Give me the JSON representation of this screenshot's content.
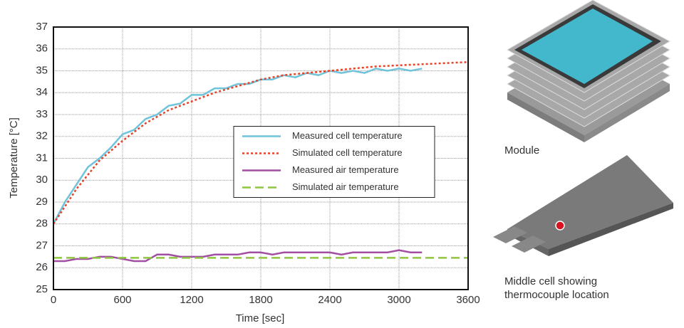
{
  "chart_data": {
    "type": "line",
    "xlabel": "Time [sec]",
    "ylabel": "Temperature [°C]",
    "xlim": [
      0,
      3600
    ],
    "xticks": [
      0,
      600,
      1200,
      1800,
      2400,
      3000,
      3600
    ],
    "ylim": [
      25,
      37
    ],
    "yticks": [
      25,
      26,
      27,
      28,
      29,
      30,
      31,
      32,
      33,
      34,
      35,
      36,
      37
    ],
    "grid": true,
    "legend": "center right",
    "series": [
      {
        "name": "Measured cell temperature",
        "color": "#6fc3da",
        "style": "solid",
        "x": [
          0,
          100,
          200,
          300,
          400,
          500,
          600,
          700,
          800,
          900,
          1000,
          1100,
          1200,
          1300,
          1400,
          1500,
          1600,
          1700,
          1800,
          1900,
          2000,
          2100,
          2200,
          2300,
          2400,
          2500,
          2600,
          2700,
          2800,
          2900,
          3000,
          3100,
          3200
        ],
        "values": [
          28.0,
          29.0,
          29.8,
          30.6,
          31.0,
          31.5,
          32.1,
          32.3,
          32.8,
          33.0,
          33.4,
          33.5,
          33.9,
          33.9,
          34.2,
          34.2,
          34.4,
          34.4,
          34.6,
          34.6,
          34.8,
          34.7,
          34.9,
          34.8,
          35.0,
          34.9,
          35.0,
          34.9,
          35.1,
          35.0,
          35.1,
          35.0,
          35.1
        ]
      },
      {
        "name": "Simulated cell temperature",
        "color": "#e2452c",
        "style": "dotted",
        "x": [
          0,
          200,
          400,
          600,
          800,
          1000,
          1200,
          1400,
          1600,
          1800,
          2000,
          2200,
          2400,
          2600,
          2800,
          3000,
          3200,
          3400,
          3600
        ],
        "values": [
          28.0,
          29.6,
          30.9,
          31.8,
          32.6,
          33.2,
          33.6,
          34.0,
          34.3,
          34.6,
          34.8,
          34.9,
          35.0,
          35.1,
          35.2,
          35.25,
          35.3,
          35.35,
          35.4
        ]
      },
      {
        "name": "Measured air temperature",
        "color": "#a24ea2",
        "style": "solid",
        "x": [
          0,
          100,
          200,
          300,
          400,
          500,
          600,
          700,
          800,
          900,
          1000,
          1100,
          1200,
          1300,
          1400,
          1500,
          1600,
          1700,
          1800,
          1900,
          2000,
          2100,
          2200,
          2300,
          2400,
          2500,
          2600,
          2700,
          2800,
          2900,
          3000,
          3100,
          3200
        ],
        "values": [
          26.3,
          26.3,
          26.4,
          26.4,
          26.5,
          26.5,
          26.4,
          26.3,
          26.3,
          26.6,
          26.6,
          26.5,
          26.5,
          26.5,
          26.6,
          26.6,
          26.6,
          26.7,
          26.7,
          26.6,
          26.7,
          26.7,
          26.7,
          26.7,
          26.7,
          26.6,
          26.7,
          26.7,
          26.7,
          26.7,
          26.8,
          26.7,
          26.7
        ]
      },
      {
        "name": "Simulated air temperature",
        "color": "#8dc63f",
        "style": "dashed",
        "x": [
          0,
          3600
        ],
        "values": [
          26.45,
          26.45
        ]
      }
    ],
    "annotations": [
      "Module",
      "Middle cell showing",
      "thermocouple location"
    ]
  }
}
